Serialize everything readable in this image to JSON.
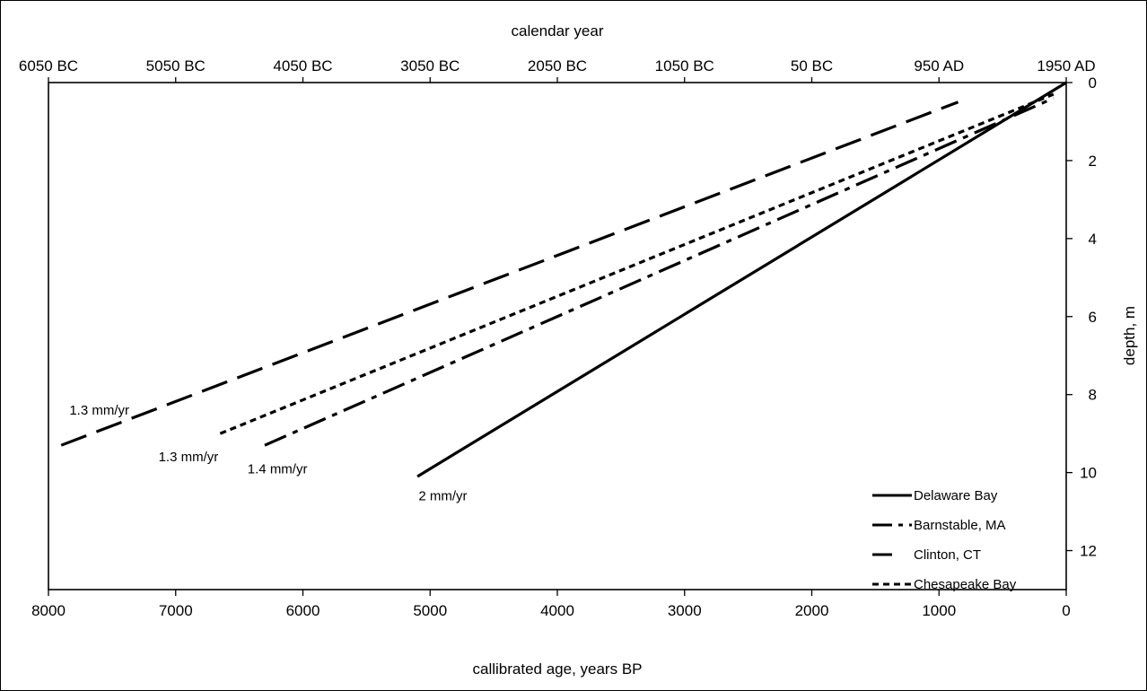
{
  "chart_data": {
    "type": "line",
    "title": "",
    "xlabel": "callibrated age, years BP",
    "x2label": "calendar year",
    "ylabel": "depth, m",
    "xlim": [
      8000,
      0
    ],
    "ylim": [
      0,
      13
    ],
    "y_inverted": true,
    "x_ticks": [
      8000,
      7000,
      6000,
      5000,
      4000,
      3000,
      2000,
      1000,
      0
    ],
    "x_tick_labels": [
      "8000",
      "7000",
      "6000",
      "5000",
      "4000",
      "3000",
      "2000",
      "1000",
      "0"
    ],
    "x2_ticks": [
      8000,
      7000,
      6000,
      5000,
      4000,
      3000,
      2000,
      1000,
      0
    ],
    "x2_tick_labels": [
      "6050 BC",
      "5050 BC",
      "4050 BC",
      "3050 BC",
      "2050 BC",
      "1050 BC",
      "50 BC",
      "950 AD",
      "1950 AD"
    ],
    "y_ticks": [
      0,
      2,
      4,
      6,
      8,
      10,
      12
    ],
    "y_tick_labels": [
      "0",
      "2",
      "4",
      "6",
      "8",
      "10",
      "12"
    ],
    "grid": false,
    "legend_position": "bottom-right",
    "series": [
      {
        "name": "Delaware Bay",
        "dash": "solid",
        "x": [
          5100,
          0
        ],
        "y": [
          10.1,
          0
        ],
        "annotation": "2 mm/yr",
        "annotation_x": 4900,
        "annotation_y": 10.6
      },
      {
        "name": "Barnstable, MA",
        "dash": "dashdot",
        "x": [
          6300,
          100
        ],
        "y": [
          9.3,
          0.4
        ],
        "annotation": "1.4 mm/yr",
        "annotation_x": 6200,
        "annotation_y": 9.9
      },
      {
        "name": "Clinton, CT",
        "dash": "longdash",
        "x": [
          7900,
          850
        ],
        "y": [
          9.3,
          0.5
        ],
        "annotation": "1.3 mm/yr",
        "annotation_x": 7600,
        "annotation_y": 8.4
      },
      {
        "name": "Chesapeake Bay",
        "dash": "dot",
        "x": [
          6650,
          100
        ],
        "y": [
          9.0,
          0.3
        ],
        "annotation": "1.3 mm/yr",
        "annotation_x": 6900,
        "annotation_y": 9.6
      }
    ]
  }
}
